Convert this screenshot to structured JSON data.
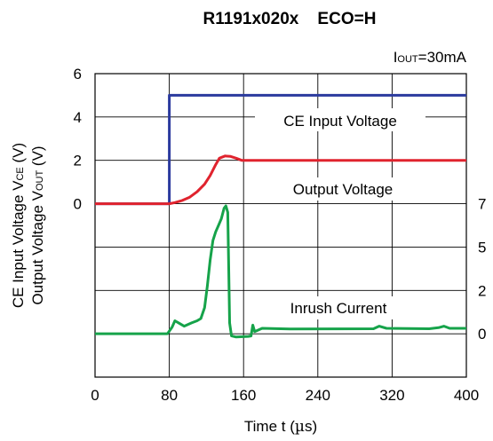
{
  "chart_data": {
    "type": "line",
    "title": "R1191x020x    ECO=H",
    "condition": {
      "main": "I",
      "sub": "OUT",
      "rest": "=30mA"
    },
    "xlabel": {
      "pre": "Time t (",
      "mu": "µ",
      "post": "s)"
    },
    "ylabel_line1": {
      "pre": "CE Input Voltage V",
      "sub": "CE",
      "post": " (V)"
    },
    "ylabel_line2": {
      "pre": "Output Voltage V",
      "sub": "OUT",
      "post": " (V)"
    },
    "xlim": [
      0,
      400
    ],
    "x_ticks": [
      "0",
      "80",
      "160",
      "240",
      "320",
      "400"
    ],
    "left_ticks": [
      "6",
      "4",
      "2",
      "0"
    ],
    "right_ticks": [
      "7",
      "5",
      "2",
      "0"
    ],
    "grid": true,
    "series": [
      {
        "name": "CE Input Voltage",
        "color": "#2b3a9e",
        "points": [
          [
            0,
            0
          ],
          [
            80,
            0
          ],
          [
            80,
            5
          ],
          [
            400,
            5
          ]
        ]
      },
      {
        "name": "Output Voltage",
        "color": "#e0232e",
        "points": [
          [
            0,
            0
          ],
          [
            80,
            0
          ],
          [
            86,
            0.05
          ],
          [
            94,
            0.15
          ],
          [
            102,
            0.3
          ],
          [
            110,
            0.55
          ],
          [
            118,
            0.9
          ],
          [
            124,
            1.3
          ],
          [
            130,
            1.8
          ],
          [
            134,
            2.1
          ],
          [
            140,
            2.2
          ],
          [
            146,
            2.18
          ],
          [
            152,
            2.1
          ],
          [
            158,
            2.0
          ],
          [
            400,
            2.0
          ]
        ]
      },
      {
        "name": "Inrush Current",
        "color": "#16a34a",
        "points": [
          [
            0,
            0.0
          ],
          [
            78,
            0.0
          ],
          [
            83,
            0.3
          ],
          [
            86,
            0.6
          ],
          [
            90,
            0.5
          ],
          [
            96,
            0.35
          ],
          [
            104,
            0.5
          ],
          [
            110,
            0.6
          ],
          [
            114,
            0.7
          ],
          [
            118,
            1.2
          ],
          [
            121,
            2.2
          ],
          [
            124,
            3.4
          ],
          [
            127,
            4.3
          ],
          [
            130,
            4.7
          ],
          [
            133,
            5.0
          ],
          [
            136,
            5.3
          ],
          [
            139,
            5.8
          ],
          [
            141,
            5.9
          ],
          [
            143,
            5.6
          ],
          [
            144,
            3.0
          ],
          [
            145,
            0.5
          ],
          [
            147,
            -0.1
          ],
          [
            152,
            -0.15
          ],
          [
            165,
            -0.12
          ],
          [
            168,
            -0.1
          ],
          [
            170,
            0.4
          ],
          [
            172,
            0.1
          ],
          [
            180,
            0.25
          ],
          [
            210,
            0.22
          ],
          [
            300,
            0.23
          ],
          [
            306,
            0.35
          ],
          [
            314,
            0.25
          ],
          [
            360,
            0.23
          ],
          [
            370,
            0.28
          ],
          [
            376,
            0.35
          ],
          [
            382,
            0.25
          ],
          [
            400,
            0.25
          ]
        ]
      }
    ],
    "labels": [
      "CE Input Voltage",
      "Output Voltage",
      "Inrush Current"
    ]
  }
}
